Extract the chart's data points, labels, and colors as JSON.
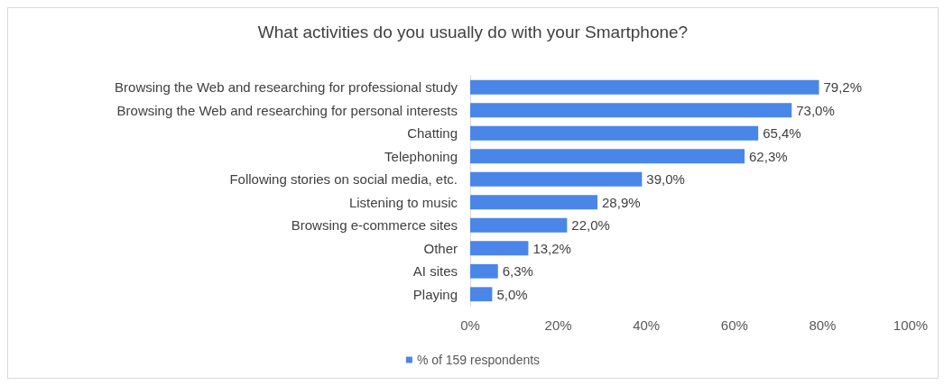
{
  "chart_data": {
    "type": "bar",
    "orientation": "horizontal",
    "title": "What activities do you usually do with your Smartphone?",
    "categories": [
      "Browsing the Web and researching for professional study",
      "Browsing the Web and researching for personal interests",
      "Chatting",
      "Telephoning",
      "Following stories on social media, etc.",
      "Listening to music",
      "Browsing e-commerce sites",
      "Other",
      "AI sites",
      "Playing"
    ],
    "series": [
      {
        "name": "% of 159 respondents",
        "color": "#4a86e8",
        "values": [
          79.2,
          73.0,
          65.4,
          62.3,
          39.0,
          28.9,
          22.0,
          13.2,
          6.3,
          5.0
        ],
        "value_labels": [
          "79,2%",
          "73,0%",
          "65,4%",
          "62,3%",
          "39,0%",
          "28,9%",
          "22,0%",
          "13,2%",
          "6,3%",
          "5,0%"
        ]
      }
    ],
    "xlim": [
      0,
      100
    ],
    "xticks": [
      {
        "value": 0,
        "label": "0%"
      },
      {
        "value": 20,
        "label": "20%"
      },
      {
        "value": 40,
        "label": "40%"
      },
      {
        "value": 60,
        "label": "60%"
      },
      {
        "value": 80,
        "label": "80%"
      },
      {
        "value": 100,
        "label": "100%"
      }
    ],
    "grid": false,
    "legend": "bottom"
  }
}
